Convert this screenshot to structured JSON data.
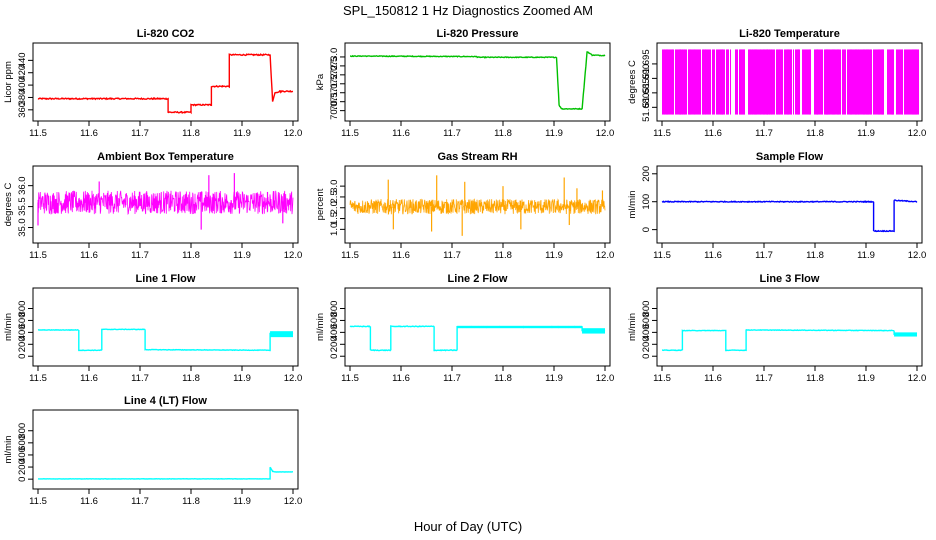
{
  "figure": {
    "title": "SPL_150812  1 Hz Diagnostics Zoomed AM",
    "xlabel": "Hour of Day (UTC)"
  },
  "chart_data": [
    {
      "type": "line",
      "title": "Li-820 CO2",
      "ylabel": "Licor ppm",
      "color": "#ff0000",
      "xlim": [
        11.5,
        12.0
      ],
      "ylim": [
        350,
        460
      ],
      "yticks": [
        360,
        380,
        400,
        420,
        440
      ],
      "xticks": [
        11.5,
        11.6,
        11.7,
        11.8,
        11.9,
        12.0
      ],
      "noise": 1,
      "x": [
        11.5,
        11.755,
        11.755,
        11.8,
        11.8,
        11.84,
        11.84,
        11.875,
        11.875,
        11.955,
        11.96,
        11.965,
        11.975,
        12.0
      ],
      "y": [
        378,
        378,
        356,
        356,
        368,
        368,
        398,
        398,
        449,
        449,
        374,
        388,
        390,
        390
      ]
    },
    {
      "type": "line",
      "title": "Li-820 Pressure",
      "ylabel": "kPa",
      "color": "#00c000",
      "xlim": [
        11.5,
        12.0
      ],
      "ylim": [
        69.7,
        73.5
      ],
      "yticks": [
        70.0,
        70.5,
        71.0,
        71.5,
        72.0,
        72.5,
        73.0
      ],
      "xticks": [
        11.5,
        11.6,
        11.7,
        11.8,
        11.9,
        12.0
      ],
      "noise": 0.02,
      "x": [
        11.5,
        11.75,
        11.75,
        11.905,
        11.91,
        11.915,
        11.955,
        11.965,
        11.975,
        12.0
      ],
      "y": [
        73.05,
        73.02,
        72.98,
        72.98,
        70.3,
        70.1,
        70.1,
        73.3,
        73.1,
        73.08
      ]
    },
    {
      "type": "bars",
      "title": "Li-820 Temperature",
      "ylabel": "degrees C",
      "color": "#ff00ff",
      "xlim": [
        11.5,
        12.0
      ],
      "ylim": [
        51.677,
        51.7005
      ],
      "yticks": [
        51.68,
        51.685,
        51.69,
        51.695
      ],
      "xticks": [
        11.5,
        11.6,
        11.7,
        11.8,
        11.9,
        12.0
      ],
      "low": 51.6775,
      "high": 51.7,
      "density": 0.6
    },
    {
      "type": "noise",
      "title": "Ambient Box Temperature",
      "ylabel": "degrees C",
      "color": "#ff00ff",
      "xlim": [
        11.5,
        12.0
      ],
      "ylim": [
        34.75,
        36.35
      ],
      "yticks": [
        35.0,
        35.5,
        36.0
      ],
      "xticks": [
        11.5,
        11.6,
        11.7,
        11.8,
        11.9,
        12.0
      ],
      "mean": 35.6,
      "spread": 0.28,
      "spikes": [
        [
          11.5,
          35.05
        ],
        [
          11.62,
          36.1
        ],
        [
          11.82,
          34.95
        ],
        [
          11.835,
          36.25
        ],
        [
          11.885,
          36.3
        ],
        [
          11.95,
          35.85
        ],
        [
          11.98,
          35.1
        ]
      ]
    },
    {
      "type": "noise",
      "title": "Gas Stream RH",
      "ylabel": "percent",
      "color": "#ffa500",
      "xlim": [
        11.5,
        12.0
      ],
      "ylim": [
        0.6,
        3.7
      ],
      "yticks": [
        1.0,
        1.5,
        2.0,
        2.5,
        3.0
      ],
      "xticks": [
        11.5,
        11.6,
        11.7,
        11.8,
        11.9,
        12.0
      ],
      "mean": 2.05,
      "spread": 0.35,
      "spikes": [
        [
          11.575,
          3.3
        ],
        [
          11.585,
          1.0
        ],
        [
          11.67,
          3.5
        ],
        [
          11.66,
          0.9
        ],
        [
          11.72,
          0.7
        ],
        [
          11.725,
          3.2
        ],
        [
          11.8,
          3.0
        ],
        [
          11.835,
          1.0
        ],
        [
          11.92,
          3.4
        ],
        [
          11.93,
          1.2
        ],
        [
          11.945,
          2.9
        ],
        [
          11.995,
          2.8
        ]
      ]
    },
    {
      "type": "line",
      "title": "Sample Flow",
      "ylabel": "ml/min",
      "color": "#0000ff",
      "xlim": [
        11.5,
        12.0
      ],
      "ylim": [
        -30,
        210
      ],
      "yticks": [
        0,
        100,
        200
      ],
      "xticks": [
        11.5,
        11.6,
        11.7,
        11.8,
        11.9,
        12.0
      ],
      "noise": 1.5,
      "x": [
        11.5,
        11.915,
        11.915,
        11.955,
        11.955,
        12.0
      ],
      "y": [
        100,
        100,
        -5,
        -5,
        105,
        100
      ]
    },
    {
      "type": "line",
      "title": "Line 1 Flow",
      "ylabel": "ml/min",
      "color": "#00ffff",
      "xlim": [
        11.5,
        12.0
      ],
      "ylim": [
        -80,
        1060
      ],
      "yticks": [
        0,
        200,
        400,
        600,
        800
      ],
      "xticks": [
        11.5,
        11.6,
        11.7,
        11.8,
        11.9,
        12.0
      ],
      "noise": 4,
      "band": [
        11.955,
        12.0,
        320,
        420
      ],
      "x": [
        11.5,
        11.58,
        11.58,
        11.625,
        11.625,
        11.71,
        11.71,
        11.955,
        11.955,
        12.0
      ],
      "y": [
        440,
        440,
        100,
        100,
        450,
        450,
        110,
        100,
        380,
        380
      ]
    },
    {
      "type": "line",
      "title": "Line 2 Flow",
      "ylabel": "ml/min",
      "color": "#00ffff",
      "xlim": [
        11.5,
        12.0
      ],
      "ylim": [
        -80,
        1060
      ],
      "yticks": [
        0,
        200,
        400,
        600,
        800
      ],
      "xticks": [
        11.5,
        11.6,
        11.7,
        11.8,
        11.9,
        12.0
      ],
      "noise": 6,
      "band": [
        11.955,
        12.0,
        380,
        470
      ],
      "band2": [
        11.71,
        11.955,
        470,
        510
      ],
      "x": [
        11.5,
        11.54,
        11.54,
        11.58,
        11.58,
        11.665,
        11.665,
        11.71,
        11.71,
        11.955,
        11.955,
        12.0
      ],
      "y": [
        500,
        500,
        100,
        100,
        500,
        500,
        100,
        100,
        490,
        490,
        420,
        420
      ]
    },
    {
      "type": "line",
      "title": "Line 3 Flow",
      "ylabel": "ml/min",
      "color": "#00ffff",
      "xlim": [
        11.5,
        12.0
      ],
      "ylim": [
        -80,
        1060
      ],
      "yticks": [
        0,
        200,
        400,
        600,
        800
      ],
      "xticks": [
        11.5,
        11.6,
        11.7,
        11.8,
        11.9,
        12.0
      ],
      "noise": 4,
      "band": [
        11.955,
        12.0,
        330,
        400
      ],
      "x": [
        11.5,
        11.54,
        11.54,
        11.625,
        11.625,
        11.665,
        11.665,
        11.955,
        11.955,
        12.0
      ],
      "y": [
        100,
        100,
        430,
        430,
        100,
        100,
        440,
        430,
        370,
        370
      ]
    },
    {
      "type": "line",
      "title": "Line 4 (LT) Flow",
      "ylabel": "ml/min",
      "color": "#00ffff",
      "xlim": [
        11.5,
        12.0
      ],
      "ylim": [
        -80,
        1060
      ],
      "yticks": [
        0,
        200,
        400,
        600,
        800
      ],
      "xticks": [
        11.5,
        11.6,
        11.7,
        11.8,
        11.9,
        12.0
      ],
      "noise": 2,
      "x": [
        11.5,
        11.955,
        11.955,
        11.96,
        11.965,
        12.0
      ],
      "y": [
        5,
        5,
        200,
        130,
        120,
        120
      ]
    }
  ]
}
